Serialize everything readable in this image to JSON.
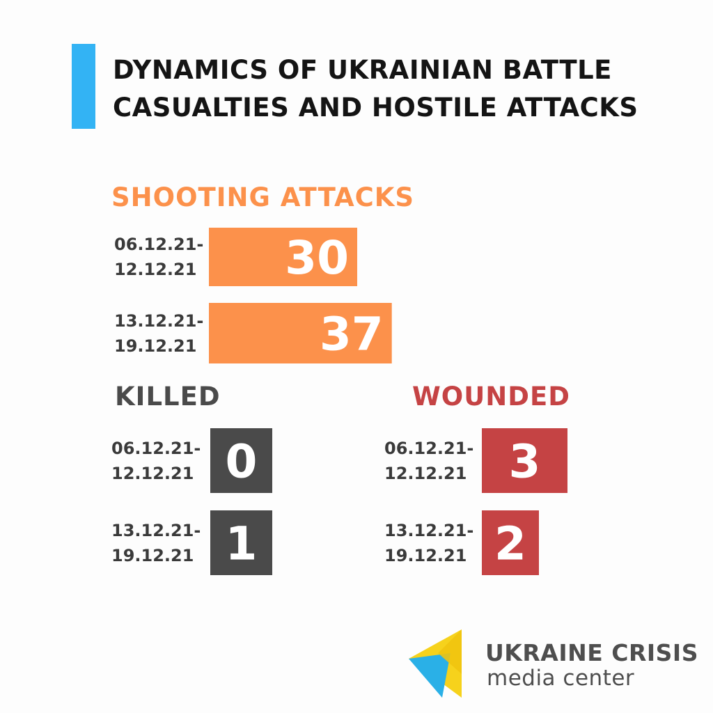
{
  "title_lines": [
    "DYNAMICS OF UKRAINIAN BATTLE",
    "CASUALTIES AND HOSTILE ATTACKS"
  ],
  "colors": {
    "accent": "#33b3f4",
    "shooting": "#fc914b",
    "killed": "#4a4a4a",
    "wounded": "#c54344",
    "text": "#141414",
    "label": "#3a3a3a"
  },
  "chart_data": [
    {
      "type": "bar",
      "title": "SHOOTING  ATTACKS",
      "categories": [
        "06.12.21-\n12.12.21",
        "13.12.21-\n19.12.21"
      ],
      "values": [
        30,
        37
      ]
    },
    {
      "type": "bar",
      "title": "KILLED",
      "categories": [
        "06.12.21-\n12.12.21",
        "13.12.21-\n19.12.21"
      ],
      "values": [
        0,
        1
      ]
    },
    {
      "type": "bar",
      "title": "WOUNDED",
      "categories": [
        "06.12.21-\n12.12.21",
        "13.12.21-\n19.12.21"
      ],
      "values": [
        3,
        2
      ]
    }
  ],
  "logo": {
    "line1": "UKRAINE CRISIS",
    "line2": "media center",
    "icon": "ucmc-triangles-logo"
  }
}
